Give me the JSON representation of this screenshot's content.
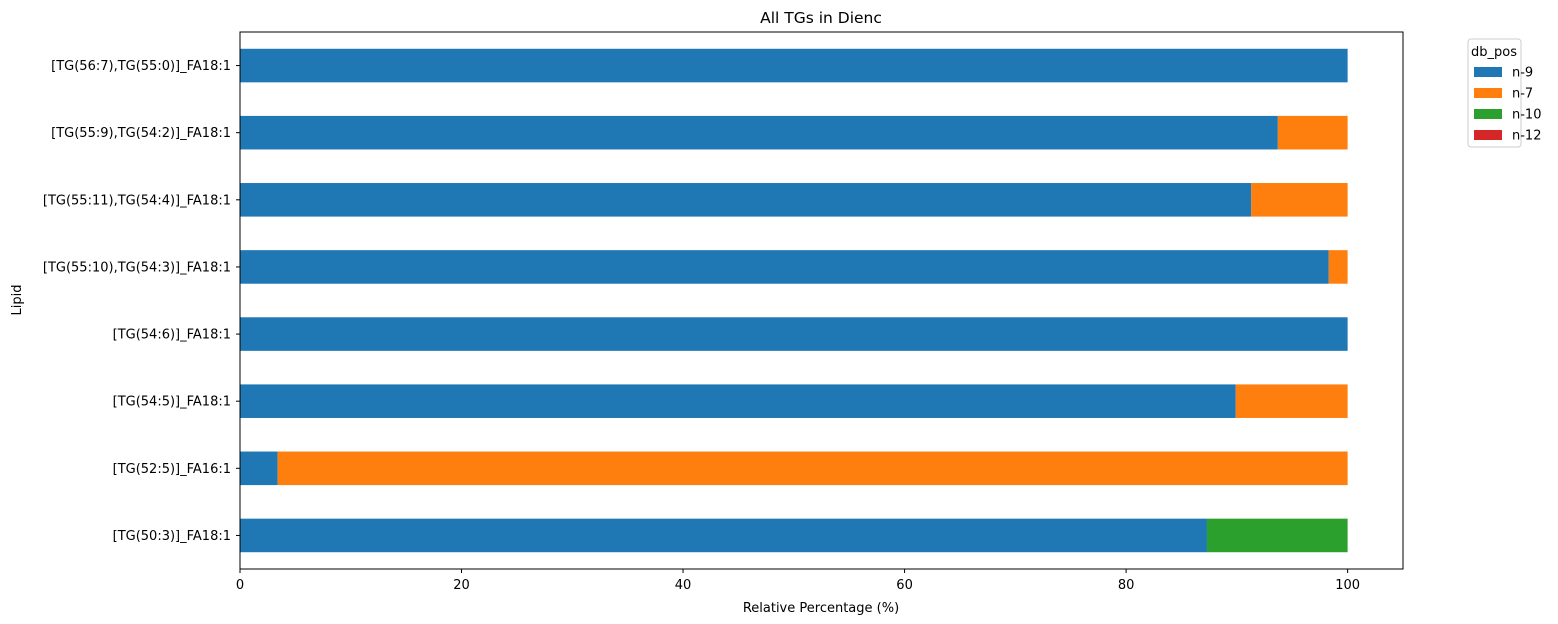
{
  "chart_data": {
    "type": "bar",
    "orientation": "horizontal",
    "stacked": true,
    "title": "All TGs in Dienc",
    "xlabel": "Relative Percentage (%)",
    "ylabel": "Lipid",
    "xlim": [
      0,
      105
    ],
    "xticks": [
      0,
      20,
      40,
      60,
      80,
      100
    ],
    "grid": false,
    "legend": {
      "title": "db_pos",
      "placement": "outside top-right"
    },
    "categories": [
      "[TG(56:7),TG(55:0)]_FA18:1",
      "[TG(55:9),TG(54:2)]_FA18:1",
      "[TG(55:11),TG(54:4)]_FA18:1",
      "[TG(55:10),TG(54:3)]_FA18:1",
      "[TG(54:6)]_FA18:1",
      "[TG(54:5)]_FA18:1",
      "[TG(52:5)]_FA16:1",
      "[TG(50:3)]_FA18:1"
    ],
    "series": [
      {
        "name": "n-9",
        "color": "#1f77b4",
        "values": [
          100,
          93.7,
          91.3,
          98.3,
          100,
          89.9,
          3.4,
          87.3
        ]
      },
      {
        "name": "n-7",
        "color": "#ff7f0e",
        "values": [
          0,
          6.3,
          8.7,
          1.7,
          0,
          10.1,
          96.6,
          0
        ]
      },
      {
        "name": "n-10",
        "color": "#2ca02c",
        "values": [
          0,
          0,
          0,
          0,
          0,
          0,
          0,
          12.7
        ]
      },
      {
        "name": "n-12",
        "color": "#d62728",
        "values": [
          0,
          0,
          0,
          0,
          0,
          0,
          0,
          0
        ]
      }
    ]
  }
}
